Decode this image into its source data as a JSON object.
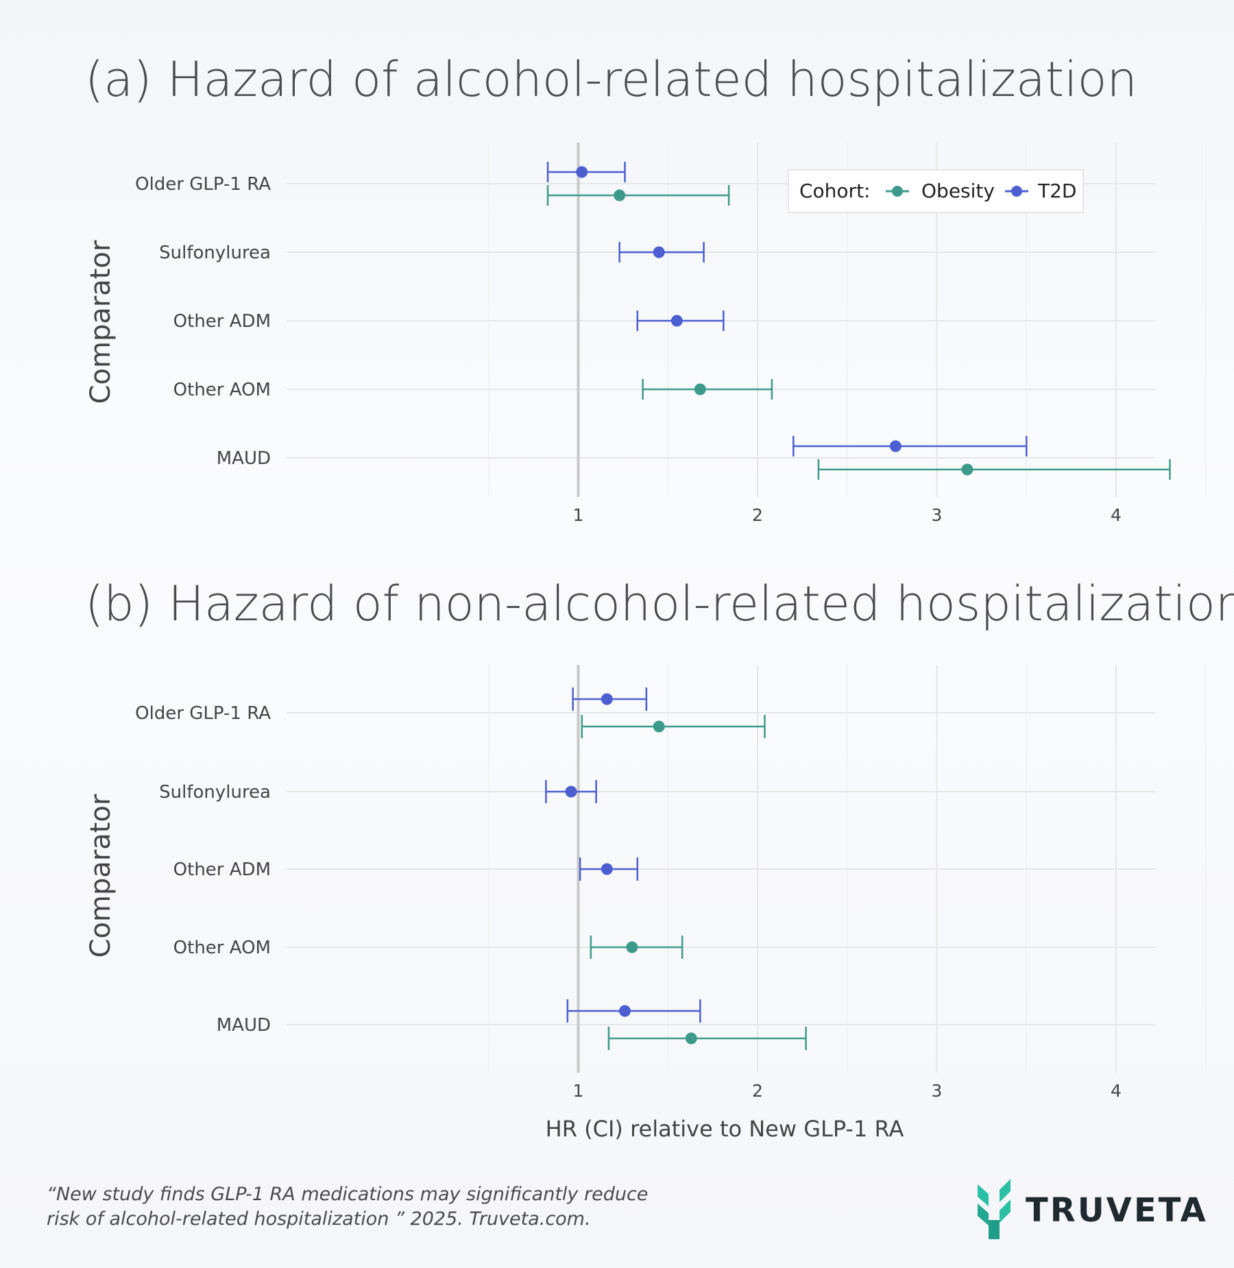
{
  "colors": {
    "obesity": "#3d9a8b",
    "t2d": "#4b5fd1",
    "brand_teal": "#2bbfa6"
  },
  "legend": {
    "title": "Cohort:",
    "entries": [
      "Obesity",
      "T2D"
    ]
  },
  "x_title": "HR (CI) relative to New GLP-1 RA",
  "citation": "“New study finds GLP-1 RA medications may significantly reduce risk of alcohol-related hospitalization ” 2025. Truveta.com.",
  "brand": {
    "name": "TRUVETA",
    "logo_icon": "truveta-sprout-icon"
  },
  "chart_data": [
    {
      "type": "forest",
      "title": "(a) Hazard of alcohol-related hospitalization",
      "ylabel": "Comparator",
      "xlabel": "HR (CI) relative to New GLP-1 RA",
      "xlim": [
        0.5,
        5.2
      ],
      "xticks": [
        1,
        2,
        3,
        4,
        5
      ],
      "reference_line": 1,
      "categories": [
        "Older GLP-1 RA",
        "Sulfonylurea",
        "Other ADM",
        "Other AOM",
        "MAUD"
      ],
      "series": [
        {
          "name": "T2D",
          "points": [
            {
              "category": "Older GLP-1 RA",
              "hr": 1.02,
              "lo": 0.83,
              "hi": 1.26
            },
            {
              "category": "Sulfonylurea",
              "hr": 1.45,
              "lo": 1.23,
              "hi": 1.7
            },
            {
              "category": "Other ADM",
              "hr": 1.55,
              "lo": 1.33,
              "hi": 1.81
            },
            {
              "category": "MAUD",
              "hr": 2.77,
              "lo": 2.2,
              "hi": 3.5
            }
          ]
        },
        {
          "name": "Obesity",
          "points": [
            {
              "category": "Older GLP-1 RA",
              "hr": 1.23,
              "lo": 0.83,
              "hi": 1.84
            },
            {
              "category": "Other AOM",
              "hr": 1.68,
              "lo": 1.36,
              "hi": 2.08
            },
            {
              "category": "MAUD",
              "hr": 3.17,
              "lo": 2.34,
              "hi": 4.3
            }
          ]
        }
      ]
    },
    {
      "type": "forest",
      "title": "(b) Hazard of non-alcohol-related hospitalization",
      "ylabel": "Comparator",
      "xlabel": "HR (CI) relative to New GLP-1 RA",
      "xlim": [
        0.5,
        5.2
      ],
      "xticks": [
        1,
        2,
        3,
        4,
        5
      ],
      "reference_line": 1,
      "categories": [
        "Older GLP-1 RA",
        "Sulfonylurea",
        "Other ADM",
        "Other AOM",
        "MAUD"
      ],
      "series": [
        {
          "name": "T2D",
          "points": [
            {
              "category": "Older GLP-1 RA",
              "hr": 1.16,
              "lo": 0.97,
              "hi": 1.38
            },
            {
              "category": "Sulfonylurea",
              "hr": 0.96,
              "lo": 0.82,
              "hi": 1.1
            },
            {
              "category": "Other ADM",
              "hr": 1.16,
              "lo": 1.01,
              "hi": 1.33
            },
            {
              "category": "MAUD",
              "hr": 1.26,
              "lo": 0.94,
              "hi": 1.68
            }
          ]
        },
        {
          "name": "Obesity",
          "points": [
            {
              "category": "Older GLP-1 RA",
              "hr": 1.45,
              "lo": 1.02,
              "hi": 2.04
            },
            {
              "category": "Other AOM",
              "hr": 1.3,
              "lo": 1.07,
              "hi": 1.58
            },
            {
              "category": "MAUD",
              "hr": 1.63,
              "lo": 1.17,
              "hi": 2.27
            }
          ]
        }
      ]
    }
  ]
}
